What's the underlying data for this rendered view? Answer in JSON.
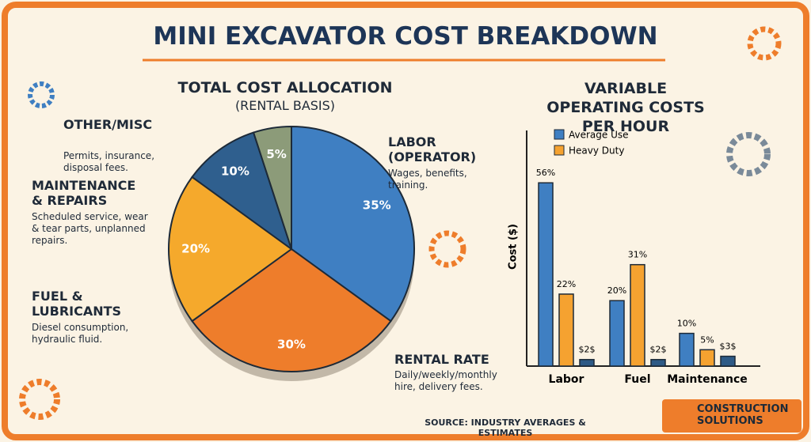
{
  "title": "MINI EXCAVATOR COST BREAKDOWN",
  "chart_data": [
    {
      "type": "pie",
      "title": "TOTAL COST ALLOCATION",
      "subtitle": "(RENTAL BASIS)",
      "categories": [
        "LABOR (OPERATOR)",
        "RENTAL RATE",
        "FUEL & LUBRICANTS",
        "MAINTENANCE & REPAIRS",
        "OTHER/MISC"
      ],
      "descriptions": [
        "Wages, benefits, training.",
        "Daily/weekly/monthly hire, delivery fees.",
        "Diesel consumption, hydraulic fluid.",
        "Scheduled service, wear & tear parts, unplanned repairs.",
        "Permits, insurance, disposal fees."
      ],
      "values": [
        35,
        30,
        20,
        10,
        5
      ],
      "value_labels": [
        "35%",
        "30%",
        "20%",
        "10%",
        "5%"
      ],
      "colors": [
        "#3f7fc2",
        "#ee7d2b",
        "#f5a92c",
        "#2f5f8e",
        "#8c9b79"
      ]
    },
    {
      "type": "bar",
      "title": "VARIABLE OPERATING COSTS PER HOUR",
      "y_label": "Cost ($)",
      "categories": [
        "Labor",
        "Fuel",
        "Maintenance"
      ],
      "ylim": [
        0,
        72
      ],
      "legend": "top-left",
      "series": [
        {
          "name": "Average Use",
          "color": "#3f7fc2",
          "values": [
            56,
            20,
            10
          ],
          "value_labels": [
            "56%",
            "20%",
            "10%"
          ]
        },
        {
          "name": "Heavy Duty",
          "color": "#f5a230",
          "values": [
            22,
            31,
            5
          ],
          "value_labels": [
            "22%",
            "31%",
            "5%"
          ]
        },
        {
          "color": "#2e5a86",
          "values": [
            2,
            2,
            3
          ],
          "value_labels": [
            "$2$",
            "$2$",
            "$3$"
          ]
        }
      ]
    }
  ],
  "source": "SOURCE: INDUSTRY AVERAGES & ESTIMATES",
  "logo": "CONSTRUCTION SOLUTIONS"
}
